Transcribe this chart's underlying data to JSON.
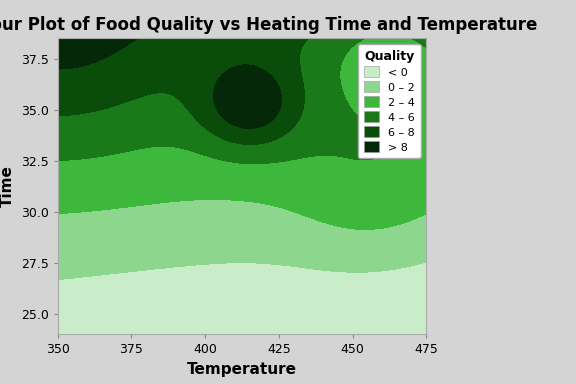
{
  "title": "Contour Plot of Food Quality vs Heating Time and Temperature",
  "xlabel": "Temperature",
  "ylabel": "Time",
  "legend_title": "Quality",
  "legend_labels": [
    "< 0",
    "0 – 2",
    "2 – 4",
    "4 – 6",
    "6 – 8",
    "> 8"
  ],
  "levels": [
    -2,
    0,
    2,
    4,
    6,
    8,
    10
  ],
  "colors": [
    "#c8edc8",
    "#8dd68d",
    "#3db83d",
    "#1a7a1a",
    "#0a4d0a",
    "#052808"
  ],
  "background_color": "#d4d4d4",
  "title_fontsize": 12,
  "axis_label_fontsize": 11,
  "xticks": [
    350,
    375,
    400,
    425,
    450,
    475
  ],
  "yticks": [
    25.0,
    27.5,
    30.0,
    32.5,
    35.0,
    37.5
  ],
  "xlim": [
    350,
    475
  ],
  "ylim": [
    24.0,
    38.5
  ]
}
